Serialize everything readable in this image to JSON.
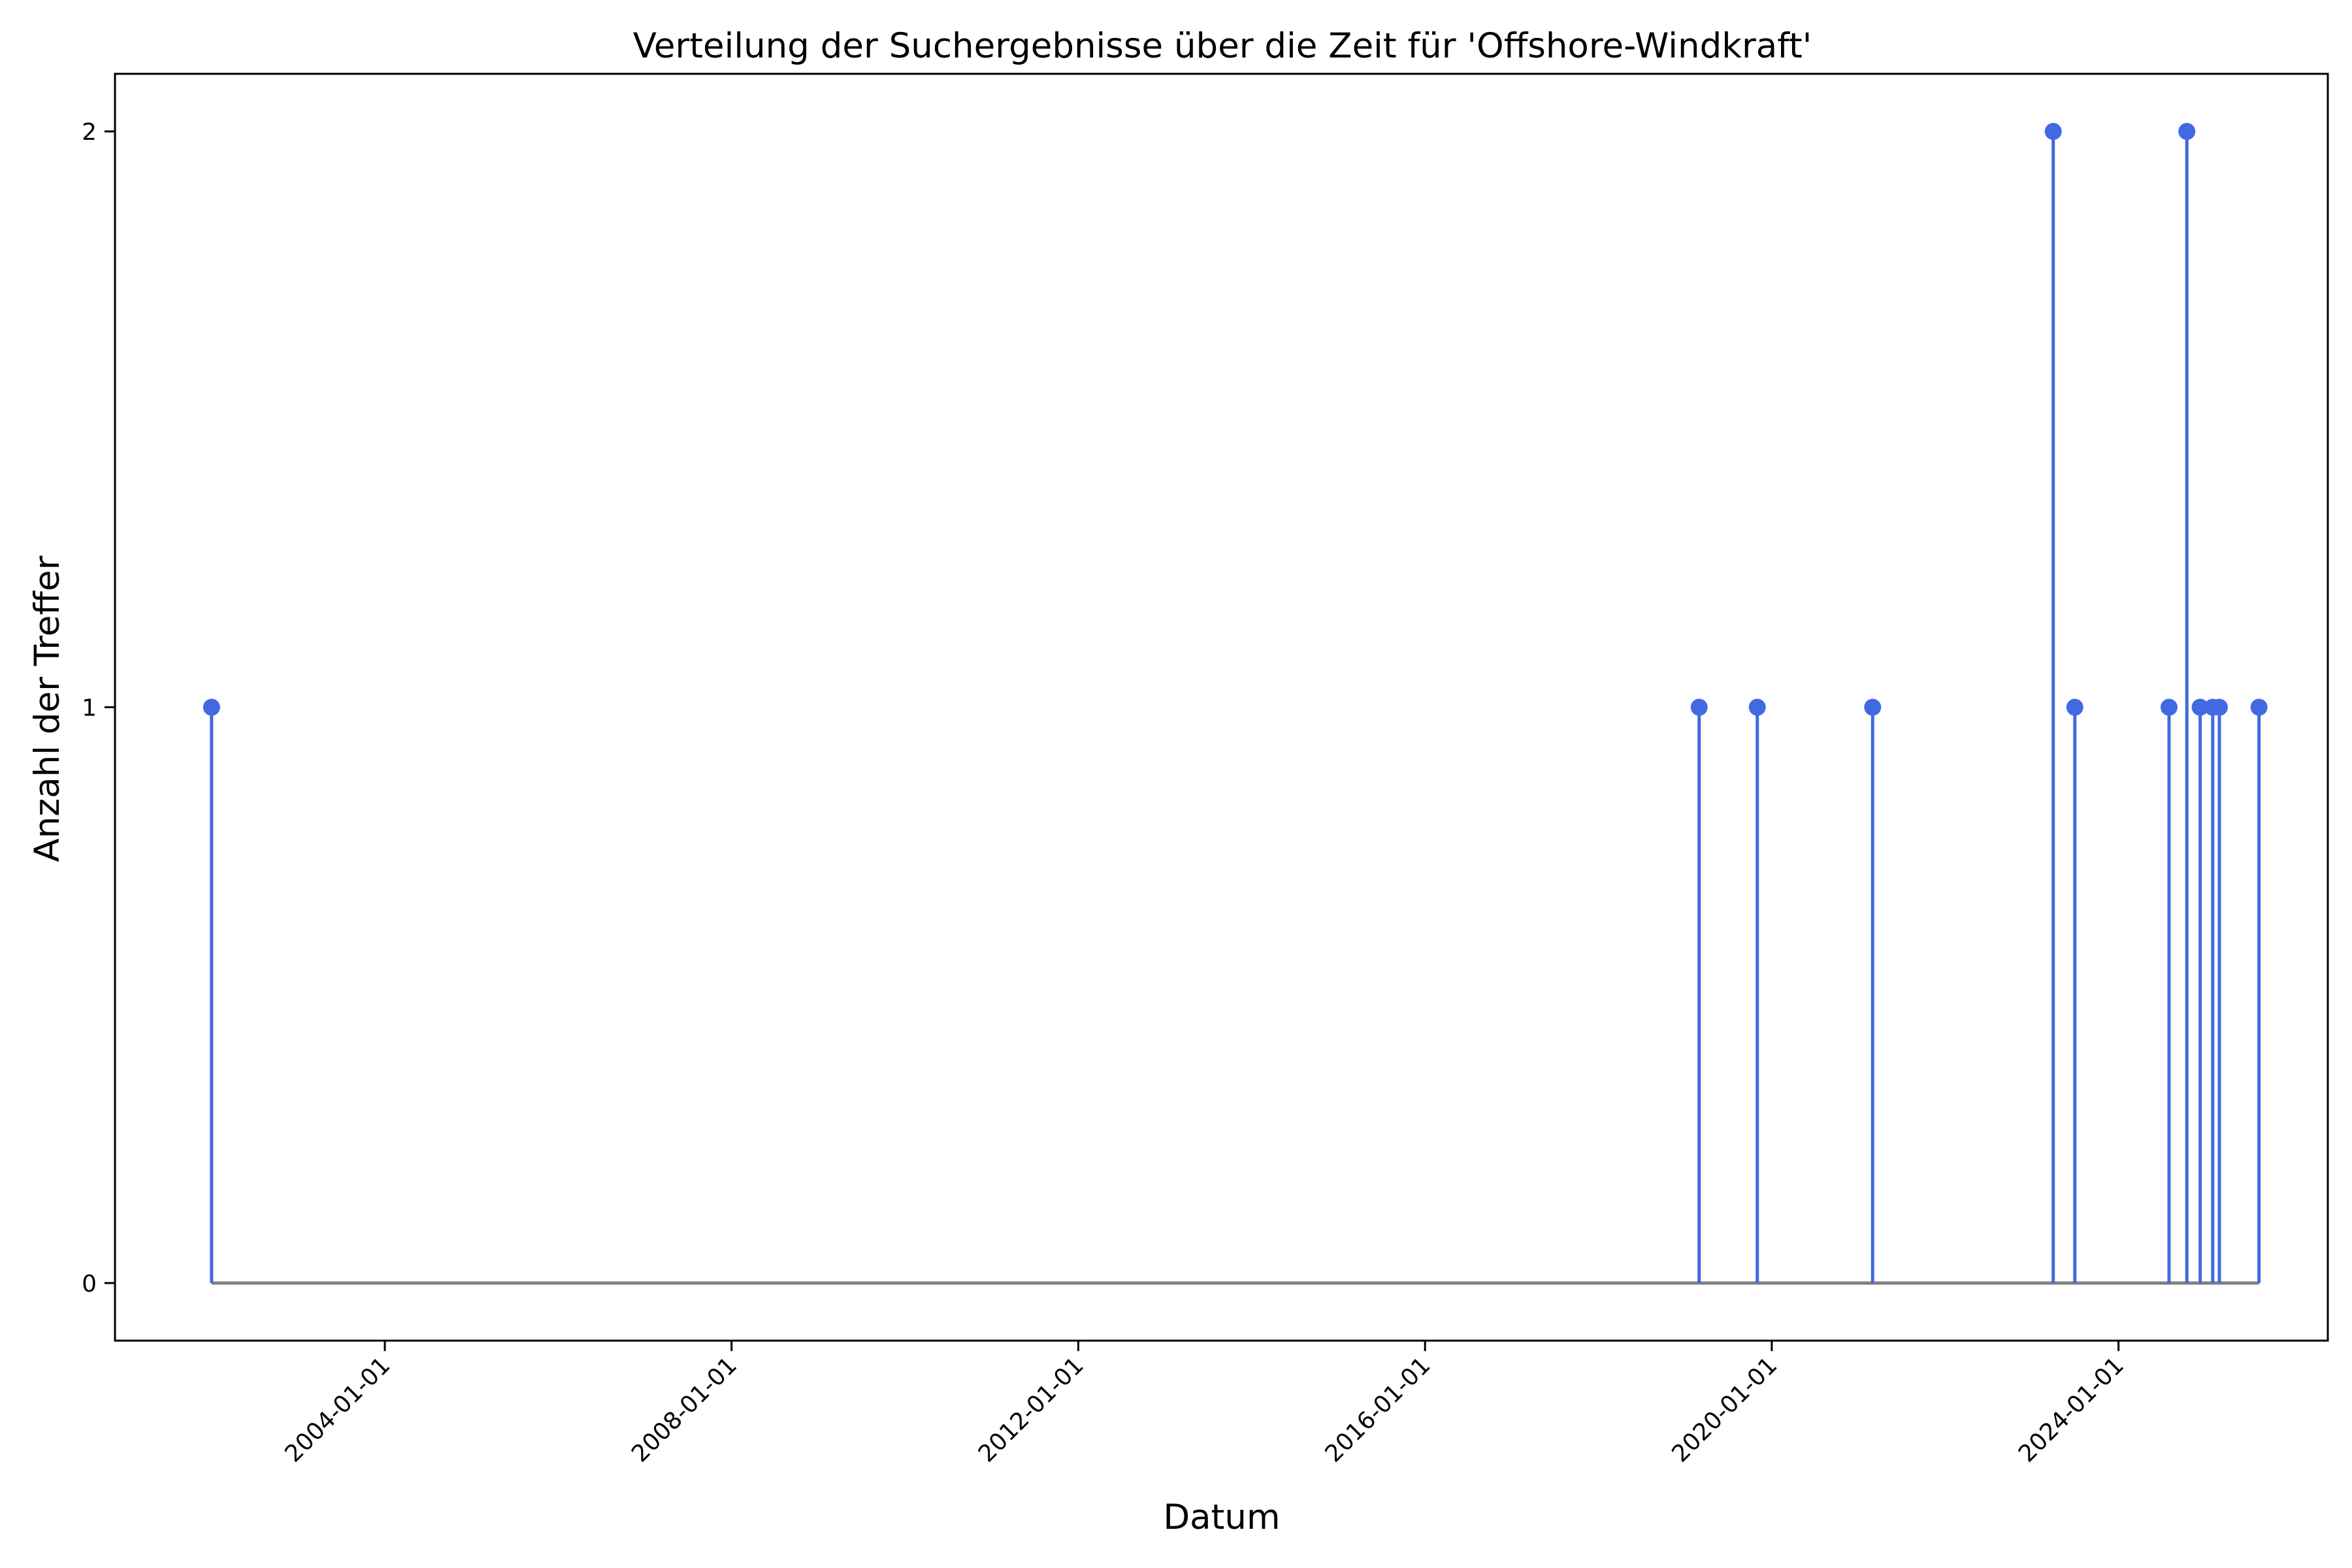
{
  "chart_data": {
    "type": "stem",
    "title": "Verteilung der Suchergebnisse über die Zeit für 'Offshore-Windkraft'",
    "xlabel": "Datum",
    "ylabel": "Anzahl der Treffer",
    "x_ticks": [
      "2004-01-01",
      "2008-01-01",
      "2012-01-01",
      "2016-01-01",
      "2020-01-01",
      "2024-01-01"
    ],
    "y_ticks": [
      0,
      1,
      2
    ],
    "xlim": [
      "2000-11-20",
      "2026-06-01"
    ],
    "ylim": [
      -0.1,
      2.1
    ],
    "grid": false,
    "series": [
      {
        "x": [
          "2002-01-01",
          "2019-03-01",
          "2019-11-01",
          "2021-03-01",
          "2023-04-01",
          "2023-07-01",
          "2024-08-01",
          "2024-10-15",
          "2024-12-10",
          "2025-02-01",
          "2025-03-01",
          "2025-08-15"
        ],
        "y": [
          1,
          1,
          1,
          1,
          2,
          1,
          1,
          2,
          1,
          1,
          1,
          1
        ]
      }
    ],
    "colors": {
      "stem": "#4169e1",
      "baseline": "#808080",
      "axes": "#000000"
    }
  }
}
